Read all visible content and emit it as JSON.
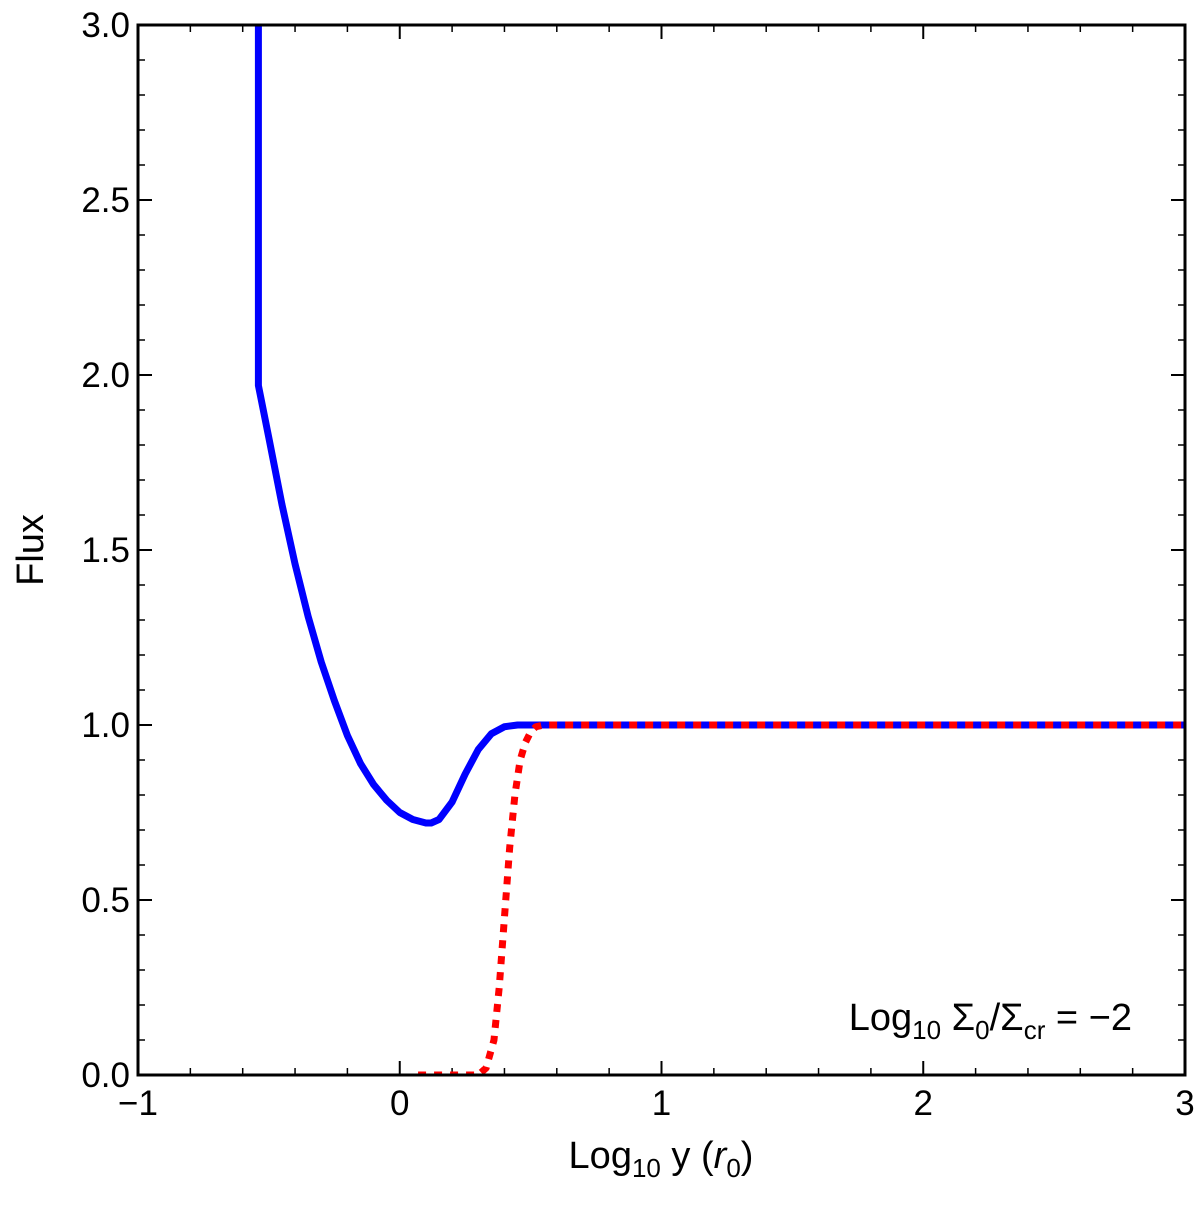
{
  "chart_data": {
    "type": "line",
    "xlabel": {
      "main": "Log",
      "sub": "10",
      "rest": " y (",
      "var": "r",
      "var_sub": "0",
      "close": ")"
    },
    "ylabel": "Flux",
    "annotation": {
      "main": "Log",
      "sub": "10",
      "sigma": " Σ",
      "sigma_sub": "0",
      "slash": "/Σ",
      "cr_sub": "cr",
      "rest": " = −2"
    },
    "xlim": [
      -1,
      3
    ],
    "ylim": [
      0,
      3
    ],
    "x_ticks": [
      {
        "value": -1,
        "label": "−1"
      },
      {
        "value": 0,
        "label": "0"
      },
      {
        "value": 1,
        "label": "1"
      },
      {
        "value": 2,
        "label": "2"
      },
      {
        "value": 3,
        "label": "3"
      }
    ],
    "y_ticks": [
      {
        "value": 0,
        "label": "0.0"
      },
      {
        "value": 0.5,
        "label": "0.5"
      },
      {
        "value": 1.0,
        "label": "1.0"
      },
      {
        "value": 1.5,
        "label": "1.5"
      },
      {
        "value": 2.0,
        "label": "2.0"
      },
      {
        "value": 2.5,
        "label": "2.5"
      },
      {
        "value": 3.0,
        "label": "3.0"
      }
    ],
    "series": [
      {
        "color": "#0000ff",
        "style": "solid",
        "x": [
          -0.54,
          -0.54,
          -0.54,
          -0.5,
          -0.45,
          -0.4,
          -0.35,
          -0.3,
          -0.25,
          -0.2,
          -0.15,
          -0.1,
          -0.05,
          0.0,
          0.05,
          0.1,
          0.12,
          0.15,
          0.2,
          0.25,
          0.3,
          0.35,
          0.4,
          0.45,
          0.5,
          0.55,
          1.0,
          1.5,
          2.0,
          2.5,
          3.0
        ],
        "y": [
          3.0,
          2.3,
          1.97,
          1.82,
          1.63,
          1.46,
          1.31,
          1.18,
          1.07,
          0.97,
          0.89,
          0.83,
          0.785,
          0.75,
          0.73,
          0.72,
          0.72,
          0.73,
          0.78,
          0.86,
          0.93,
          0.975,
          0.995,
          1.0,
          1.0,
          1.0,
          1.0,
          1.0,
          1.0,
          1.0,
          1.0
        ]
      },
      {
        "color": "#ff0000",
        "style": "dotted",
        "x": [
          0.07,
          0.2,
          0.3,
          0.33,
          0.36,
          0.38,
          0.4,
          0.42,
          0.44,
          0.46,
          0.48,
          0.5,
          0.52,
          0.55,
          1.0,
          1.5,
          2.0,
          2.5,
          3.0
        ],
        "y": [
          0.0,
          0.0,
          0.0,
          0.02,
          0.1,
          0.25,
          0.45,
          0.65,
          0.8,
          0.9,
          0.95,
          0.98,
          0.995,
          1.0,
          1.0,
          1.0,
          1.0,
          1.0,
          1.0
        ]
      }
    ],
    "grid": false,
    "legend": "none"
  }
}
